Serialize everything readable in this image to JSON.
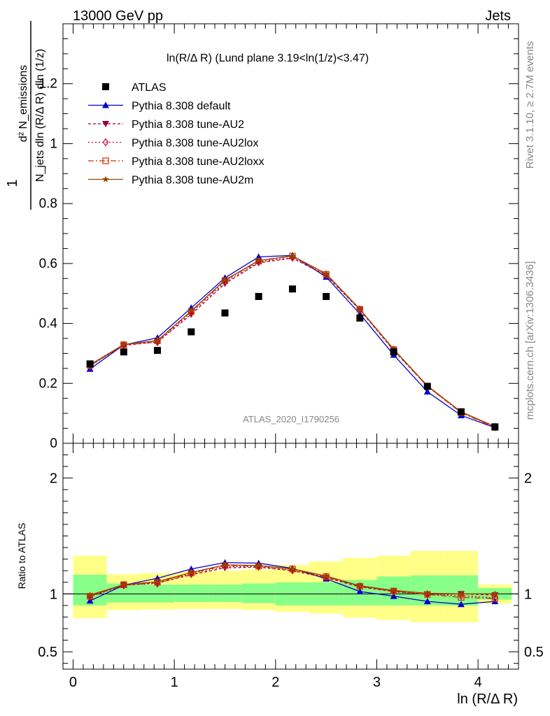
{
  "header": {
    "left": "13000 GeV pp",
    "right": "Jets"
  },
  "side_labels": {
    "rivet": "Rivet 3.1.10, ≥ 2.7M events",
    "mcplots": "mcplots.cern.ch [arXiv:1306.3436]"
  },
  "colors": {
    "atlas": "#000000",
    "default": "#0000cc",
    "au2": "#990033",
    "au2lox": "#cc0033",
    "au2loxx": "#cc3300",
    "au2m": "#994400",
    "band_inner": "#88ff88",
    "band_outer": "#ffff88"
  },
  "chart_data": [
    {
      "type": "line",
      "title": "ln(R/Δ R) (Lund plane 3.19<ln(1/z)<3.47)",
      "watermark": "ATLAS_2020_I1790256",
      "ylabel_num": "1",
      "ylabel_frac_num": "d² N_emissions",
      "ylabel_frac_den": "N_jets dln (R/Δ R) dln (1/z)",
      "xlim": [
        -0.1,
        4.4
      ],
      "ylim": [
        0,
        1.4
      ],
      "yticks": [
        {
          "v": 0,
          "label": "0"
        },
        {
          "v": 0.2,
          "label": "0.2"
        },
        {
          "v": 0.4,
          "label": "0.4"
        },
        {
          "v": 0.6,
          "label": "0.6"
        },
        {
          "v": 0.8,
          "label": "0.8"
        },
        {
          "v": 1.0,
          "label": "1"
        },
        {
          "v": 1.2,
          "label": "1.2"
        }
      ],
      "x": [
        0.167,
        0.5,
        0.833,
        1.167,
        1.5,
        1.833,
        2.167,
        2.5,
        2.833,
        3.167,
        3.5,
        3.833,
        4.167
      ],
      "legend": [
        {
          "key": "atlas",
          "label": "ATLAS"
        },
        {
          "key": "default",
          "label": "Pythia 8.308 default"
        },
        {
          "key": "au2",
          "label": "Pythia 8.308 tune-AU2"
        },
        {
          "key": "au2lox",
          "label": "Pythia 8.308 tune-AU2lox"
        },
        {
          "key": "au2loxx",
          "label": "Pythia 8.308 tune-AU2loxx"
        },
        {
          "key": "au2m",
          "label": "Pythia 8.308 tune-AU2m"
        }
      ],
      "series": [
        {
          "key": "atlas",
          "name": "ATLAS",
          "values": [
            0.265,
            0.305,
            0.31,
            0.372,
            0.435,
            0.49,
            0.515,
            0.49,
            0.418,
            0.305,
            0.19,
            0.105,
            0.055
          ]
        },
        {
          "key": "default",
          "name": "Pythia 8.308 default",
          "values": [
            0.248,
            0.328,
            0.352,
            0.452,
            0.552,
            0.622,
            0.627,
            0.555,
            0.432,
            0.295,
            0.172,
            0.093,
            0.052
          ]
        },
        {
          "key": "au2",
          "name": "Pythia 8.308 tune-AU2",
          "values": [
            0.26,
            0.327,
            0.338,
            0.43,
            0.533,
            0.602,
            0.618,
            0.56,
            0.445,
            0.31,
            0.19,
            0.105,
            0.056
          ]
        },
        {
          "key": "au2lox",
          "name": "Pythia 8.308 tune-AU2lox",
          "values": [
            0.258,
            0.328,
            0.338,
            0.436,
            0.538,
            0.605,
            0.62,
            0.562,
            0.447,
            0.312,
            0.19,
            0.104,
            0.054
          ]
        },
        {
          "key": "au2loxx",
          "name": "Pythia 8.308 tune-AU2loxx",
          "values": [
            0.26,
            0.329,
            0.342,
            0.44,
            0.543,
            0.608,
            0.625,
            0.564,
            0.447,
            0.313,
            0.19,
            0.102,
            0.053
          ]
        },
        {
          "key": "au2m",
          "name": "Pythia 8.308 tune-AU2m",
          "values": [
            0.262,
            0.33,
            0.343,
            0.442,
            0.545,
            0.61,
            0.625,
            0.566,
            0.448,
            0.314,
            0.192,
            0.105,
            0.056
          ]
        }
      ]
    },
    {
      "type": "line",
      "ylabel": "Ratio to ATLAS",
      "xlabel": "ln (R/Δ R)",
      "xlim": [
        -0.1,
        4.4
      ],
      "ylim": [
        0.35,
        2.3
      ],
      "xticks": [
        {
          "v": 0,
          "label": "0"
        },
        {
          "v": 1,
          "label": "1"
        },
        {
          "v": 2,
          "label": "2"
        },
        {
          "v": 3,
          "label": "3"
        },
        {
          "v": 4,
          "label": "4"
        }
      ],
      "yticks": [
        {
          "v": 0.5,
          "label": "0.5"
        },
        {
          "v": 1.0,
          "label": "1"
        },
        {
          "v": 2.0,
          "label": "2"
        }
      ],
      "x": [
        0.167,
        0.5,
        0.833,
        1.167,
        1.5,
        1.833,
        2.167,
        2.5,
        2.833,
        3.167,
        3.5,
        3.833,
        4.167
      ],
      "bin_edges": [
        0,
        0.333,
        0.667,
        1.0,
        1.333,
        1.667,
        2.0,
        2.333,
        2.667,
        3.0,
        3.333,
        3.667,
        4.0,
        4.333
      ],
      "band_inner": {
        "low": [
          0.9,
          0.925,
          0.925,
          0.93,
          0.93,
          0.92,
          0.9,
          0.9,
          0.9,
          0.9,
          0.9,
          0.9,
          0.95
        ],
        "high": [
          1.165,
          1.09,
          1.08,
          1.08,
          1.08,
          1.09,
          1.1,
          1.1,
          1.12,
          1.15,
          1.16,
          1.16,
          1.05
        ]
      },
      "band_outer": {
        "low": [
          0.79,
          0.86,
          0.865,
          0.87,
          0.87,
          0.86,
          0.845,
          0.83,
          0.795,
          0.775,
          0.755,
          0.755,
          0.915
        ],
        "high": [
          1.33,
          1.17,
          1.18,
          1.19,
          1.2,
          1.21,
          1.25,
          1.28,
          1.31,
          1.33,
          1.37,
          1.37,
          1.08
        ]
      },
      "series": [
        {
          "key": "default",
          "name": "Pythia 8.308 default",
          "values": [
            0.94,
            1.075,
            1.135,
            1.215,
            1.27,
            1.265,
            1.22,
            1.13,
            1.02,
            0.98,
            0.935,
            0.91,
            0.935
          ]
        },
        {
          "key": "au2",
          "name": "Pythia 8.308 tune-AU2",
          "values": [
            0.98,
            1.075,
            1.095,
            1.165,
            1.225,
            1.23,
            1.2,
            1.14,
            1.06,
            1.02,
            0.995,
            1.0,
            0.99
          ]
        },
        {
          "key": "au2lox",
          "name": "Pythia 8.308 tune-AU2lox",
          "values": [
            0.975,
            1.075,
            1.09,
            1.175,
            1.235,
            1.235,
            1.205,
            1.145,
            1.065,
            1.02,
            0.995,
            0.985,
            0.965
          ]
        },
        {
          "key": "au2loxx",
          "name": "Pythia 8.308 tune-AU2loxx",
          "values": [
            0.98,
            1.08,
            1.1,
            1.18,
            1.245,
            1.24,
            1.215,
            1.15,
            1.065,
            1.025,
            0.995,
            0.97,
            0.96
          ]
        },
        {
          "key": "au2m",
          "name": "Pythia 8.308 tune-AU2m",
          "values": [
            0.99,
            1.08,
            1.105,
            1.185,
            1.25,
            1.245,
            1.215,
            1.155,
            1.07,
            1.03,
            1.005,
            1.0,
            1.0
          ]
        }
      ]
    }
  ]
}
